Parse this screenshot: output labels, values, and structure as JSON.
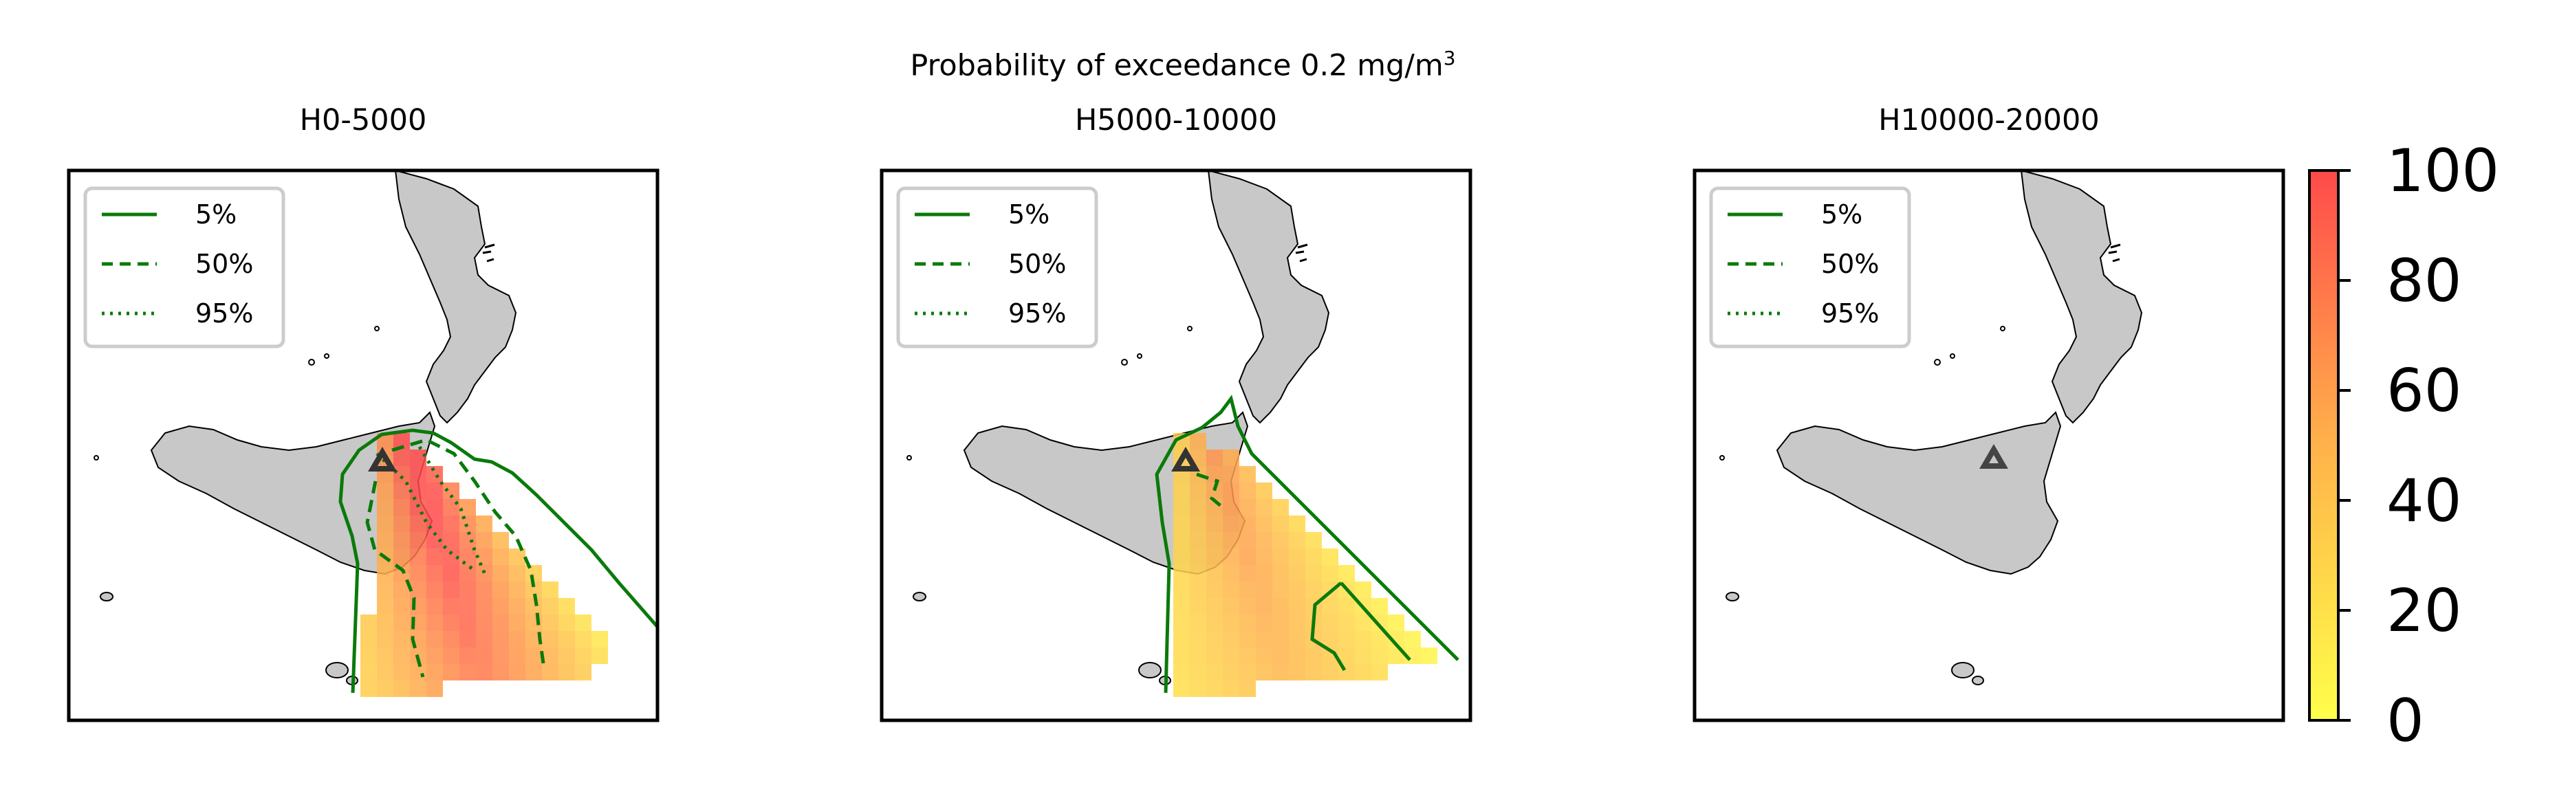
{
  "suptitle": {
    "text": "Probability of exceedance 0.2 mg/m",
    "superscript": "3"
  },
  "panels": [
    {
      "title": "H0-5000",
      "legend": [
        "5%",
        "50%",
        "95%"
      ]
    },
    {
      "title": "H5000-10000",
      "legend": [
        "5%",
        "50%",
        "95%"
      ]
    },
    {
      "title": "H10000-20000",
      "legend": [
        "5%",
        "50%",
        "95%"
      ]
    }
  ],
  "colorbar": {
    "ticks": [
      "0",
      "20",
      "40",
      "60",
      "80",
      "100"
    ],
    "min": 0,
    "max": 100,
    "colormap": [
      "#ffff4a",
      "#ffa94a",
      "#ff4a4a"
    ]
  },
  "colors": {
    "contour": "#0a7a0a",
    "land": "#c8c8c8",
    "vent_marker": "#444444"
  }
}
